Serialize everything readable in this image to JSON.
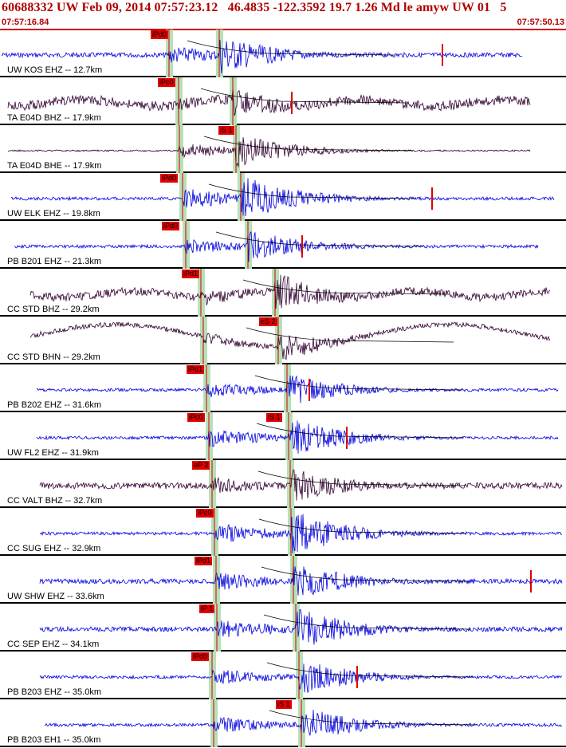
{
  "header": {
    "title": "60688332 UW Feb 09, 2014 07:57:23.12   46.4835 -122.3592 19.7 1.26 Md le amyw UW 01   5",
    "time_start": "07:57:16.84",
    "time_end": "07:57:50.13"
  },
  "colors": {
    "title": "#b00000",
    "pick_tag": "#e00000",
    "pick_window": "#b8e0b8",
    "trace_blue": "#0000e0",
    "trace_dark": "#300030",
    "amplitude_mark": "#e00000"
  },
  "traces": [
    {
      "label": "UW KOS EHZ -- 12.7km",
      "color": "blue",
      "picks": [
        {
          "tag": "iPd0",
          "phase": "P"
        }
      ]
    },
    {
      "label": "TA E04D BHZ -- 17.9km",
      "color": "dark",
      "picks": [
        {
          "tag": "iPc0",
          "phase": "P"
        }
      ]
    },
    {
      "label": "TA E04D BHE -- 17.9km",
      "color": "dark",
      "picks": [
        {
          "tag": "iS 1",
          "phase": "S"
        }
      ]
    },
    {
      "label": "UW ELK EHZ -- 19.8km",
      "color": "blue",
      "picks": [
        {
          "tag": "iPd0",
          "phase": "P"
        }
      ]
    },
    {
      "label": "PB B201 EHZ -- 21.3km",
      "color": "blue",
      "picks": [
        {
          "tag": "iPd0",
          "phase": "P"
        }
      ]
    },
    {
      "label": "CC STD BHZ -- 29.2km",
      "color": "dark",
      "picks": [
        {
          "tag": "iPd1",
          "phase": "P"
        }
      ]
    },
    {
      "label": "CC STD BHN -- 29.2km",
      "color": "dark",
      "picks": [
        {
          "tag": "eS 2",
          "phase": "S"
        }
      ]
    },
    {
      "label": "PB B202 EHZ -- 31.6km",
      "color": "blue",
      "picks": [
        {
          "tag": "iPd1",
          "phase": "P"
        }
      ]
    },
    {
      "label": "UW FL2 EHZ -- 31.9km",
      "color": "blue",
      "picks": [
        {
          "tag": "iPc0",
          "phase": "P"
        },
        {
          "tag": "iS 1",
          "phase": "S"
        }
      ]
    },
    {
      "label": "CC VALT BHZ -- 32.7km",
      "color": "dark",
      "picks": [
        {
          "tag": "eP 2",
          "phase": "P"
        }
      ]
    },
    {
      "label": "CC SUG EHZ -- 32.9km",
      "color": "blue",
      "picks": [
        {
          "tag": "iPc0",
          "phase": "P"
        }
      ]
    },
    {
      "label": "UW SHW EHZ -- 33.6km",
      "color": "blue",
      "picks": [
        {
          "tag": "iPd1",
          "phase": "P"
        }
      ]
    },
    {
      "label": "CC SEP EHZ -- 34.1km",
      "color": "blue",
      "picks": [
        {
          "tag": "iP 1",
          "phase": "P"
        }
      ]
    },
    {
      "label": "PB B203 EHZ -- 35.0km",
      "color": "blue",
      "picks": [
        {
          "tag": "iPd0",
          "phase": "P"
        }
      ]
    },
    {
      "label": "PB B203 EH1 -- 35.0km",
      "color": "blue",
      "picks": [
        {
          "tag": "iS 1",
          "phase": "S"
        }
      ]
    }
  ]
}
